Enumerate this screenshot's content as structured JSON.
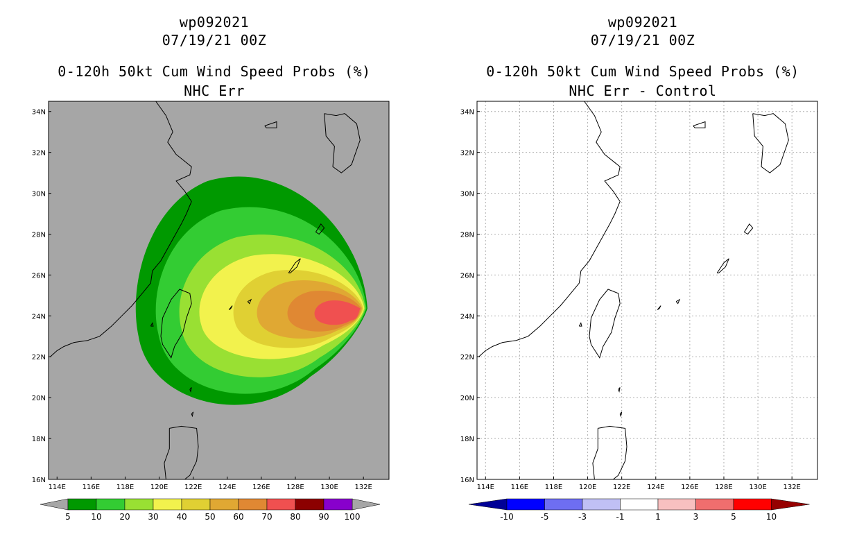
{
  "panels": [
    {
      "id": "left",
      "storm_id": "wp092021",
      "datetime": "07/19/21 00Z",
      "product_title": "0-120h 50kt Cum Wind Speed Probs (%)",
      "subtitle": "NHC Err",
      "background": "#a6a6a6",
      "colorbar": {
        "labels": [
          "5",
          "10",
          "20",
          "30",
          "40",
          "50",
          "60",
          "70",
          "80",
          "90",
          "100"
        ],
        "colors": [
          "#009900",
          "#33cc33",
          "#99e033",
          "#f2f24d",
          "#e0d033",
          "#e0a833",
          "#e08833",
          "#f05050",
          "#8c0000",
          "#8800cc"
        ],
        "end_color": "#a6a6a6"
      }
    },
    {
      "id": "right",
      "storm_id": "wp092021",
      "datetime": "07/19/21 00Z",
      "product_title": "0-120h 50kt Cum Wind Speed Probs (%)",
      "subtitle": "NHC Err - Control",
      "background": "#ffffff",
      "colorbar": {
        "labels": [
          "-10",
          "-5",
          "-3",
          "-1",
          "1",
          "3",
          "5",
          "10"
        ],
        "colors": [
          "#0000ff",
          "#6e6ef2",
          "#c0c0f5",
          "#ffffff",
          "#f8c0c0",
          "#f06e6e",
          "#ff0000"
        ],
        "end_left": "#000096",
        "end_right": "#960000"
      }
    }
  ],
  "map": {
    "lat_labels": [
      "34N",
      "32N",
      "30N",
      "28N",
      "26N",
      "24N",
      "22N",
      "20N",
      "18N",
      "16N"
    ],
    "lon_labels": [
      "114E",
      "116E",
      "118E",
      "120E",
      "122E",
      "124E",
      "126E",
      "128E",
      "130E",
      "132E"
    ]
  },
  "probability_field": {
    "center_lat": 24.1,
    "center_lon": 131.5,
    "contours": [
      {
        "threshold": 5,
        "color": "#009900"
      },
      {
        "threshold": 10,
        "color": "#33cc33"
      },
      {
        "threshold": 20,
        "color": "#99e033"
      },
      {
        "threshold": 30,
        "color": "#f2f24d"
      },
      {
        "threshold": 40,
        "color": "#e0d033"
      },
      {
        "threshold": 50,
        "color": "#e0a833"
      },
      {
        "threshold": 60,
        "color": "#e08833"
      },
      {
        "threshold": 70,
        "color": "#f05050"
      }
    ]
  }
}
